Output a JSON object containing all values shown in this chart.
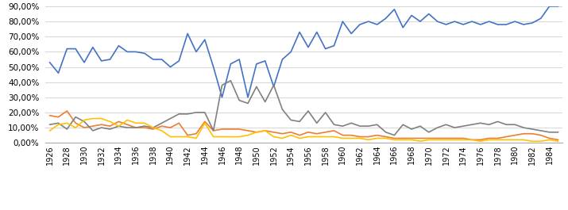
{
  "years": [
    1926,
    1927,
    1928,
    1929,
    1930,
    1931,
    1932,
    1933,
    1934,
    1935,
    1936,
    1937,
    1938,
    1939,
    1940,
    1941,
    1942,
    1943,
    1944,
    1945,
    1946,
    1947,
    1948,
    1949,
    1950,
    1951,
    1952,
    1953,
    1954,
    1955,
    1956,
    1957,
    1958,
    1959,
    1960,
    1961,
    1962,
    1963,
    1964,
    1965,
    1966,
    1967,
    1968,
    1969,
    1970,
    1971,
    1972,
    1973,
    1974,
    1975,
    1976,
    1977,
    1978,
    1979,
    1980,
    1981,
    1982,
    1983,
    1984,
    1985
  ],
  "limburg": [
    0.53,
    0.46,
    0.62,
    0.62,
    0.53,
    0.63,
    0.54,
    0.55,
    0.64,
    0.6,
    0.6,
    0.59,
    0.55,
    0.55,
    0.5,
    0.54,
    0.72,
    0.6,
    0.68,
    0.5,
    0.3,
    0.52,
    0.55,
    0.3,
    0.52,
    0.54,
    0.37,
    0.55,
    0.6,
    0.73,
    0.63,
    0.73,
    0.62,
    0.64,
    0.8,
    0.72,
    0.78,
    0.8,
    0.78,
    0.82,
    0.88,
    0.76,
    0.84,
    0.8,
    0.85,
    0.8,
    0.78,
    0.8,
    0.78,
    0.8,
    0.78,
    0.8,
    0.78,
    0.78,
    0.8,
    0.78,
    0.79,
    0.82,
    0.9,
    0.9
  ],
  "vlaams_brabant": [
    0.18,
    0.17,
    0.21,
    0.13,
    0.1,
    0.11,
    0.12,
    0.11,
    0.14,
    0.12,
    0.1,
    0.1,
    0.09,
    0.11,
    0.1,
    0.13,
    0.05,
    0.06,
    0.14,
    0.08,
    0.09,
    0.09,
    0.09,
    0.08,
    0.07,
    0.08,
    0.07,
    0.06,
    0.07,
    0.05,
    0.07,
    0.06,
    0.07,
    0.08,
    0.05,
    0.05,
    0.04,
    0.04,
    0.05,
    0.04,
    0.03,
    0.03,
    0.03,
    0.03,
    0.03,
    0.03,
    0.03,
    0.03,
    0.03,
    0.02,
    0.02,
    0.03,
    0.03,
    0.04,
    0.05,
    0.06,
    0.06,
    0.05,
    0.03,
    0.02
  ],
  "antwerpen": [
    0.12,
    0.13,
    0.09,
    0.17,
    0.14,
    0.08,
    0.1,
    0.09,
    0.11,
    0.1,
    0.1,
    0.11,
    0.1,
    0.13,
    0.16,
    0.19,
    0.19,
    0.2,
    0.2,
    0.08,
    0.38,
    0.41,
    0.28,
    0.26,
    0.37,
    0.27,
    0.38,
    0.22,
    0.15,
    0.14,
    0.21,
    0.13,
    0.2,
    0.12,
    0.11,
    0.13,
    0.11,
    0.11,
    0.12,
    0.07,
    0.05,
    0.12,
    0.09,
    0.11,
    0.07,
    0.1,
    0.12,
    0.1,
    0.11,
    0.12,
    0.13,
    0.12,
    0.14,
    0.12,
    0.12,
    0.1,
    0.09,
    0.08,
    0.07,
    0.07
  ],
  "wallonie": [
    0.08,
    0.12,
    0.13,
    0.1,
    0.15,
    0.16,
    0.16,
    0.14,
    0.11,
    0.15,
    0.13,
    0.13,
    0.1,
    0.08,
    0.04,
    0.04,
    0.04,
    0.03,
    0.13,
    0.04,
    0.04,
    0.04,
    0.04,
    0.05,
    0.07,
    0.08,
    0.04,
    0.03,
    0.05,
    0.03,
    0.04,
    0.04,
    0.04,
    0.04,
    0.03,
    0.03,
    0.03,
    0.02,
    0.03,
    0.03,
    0.02,
    0.02,
    0.02,
    0.01,
    0.02,
    0.02,
    0.02,
    0.02,
    0.02,
    0.02,
    0.01,
    0.02,
    0.02,
    0.02,
    0.02,
    0.02,
    0.01,
    0.01,
    0.02,
    0.01
  ],
  "colors": {
    "limburg": "#4472C4",
    "vlaams_brabant": "#ED7D31",
    "antwerpen": "#808080",
    "wallonie": "#FFC000"
  },
  "ylim": [
    0.0,
    0.9
  ],
  "yticks": [
    0.0,
    0.1,
    0.2,
    0.3,
    0.4,
    0.5,
    0.6,
    0.7,
    0.8,
    0.9
  ],
  "background_color": "#ffffff"
}
